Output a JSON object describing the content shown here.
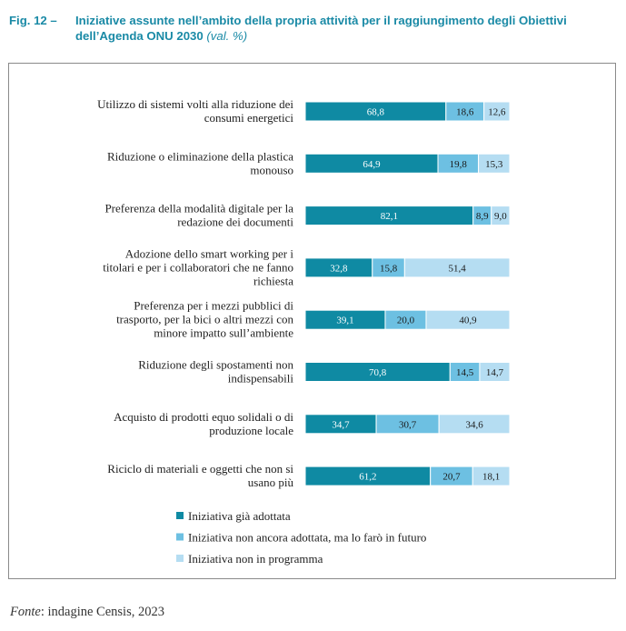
{
  "figure": {
    "number": "Fig. 12 –",
    "title_line1": "Iniziative assunte nell’ambito della propria attività per il raggiungimento degli Obiettivi",
    "title_line2": "dell’Agenda ONU 2030",
    "unit": "(val. %)"
  },
  "source": {
    "label": "Fonte",
    "text": ": indagine Censis, 2023"
  },
  "colors": {
    "adopted": "#0f8aa3",
    "future": "#6dc0e2",
    "not_planned": "#b5ddf2",
    "separator": "#ffffff"
  },
  "chart_data": {
    "type": "bar",
    "orientation": "horizontal",
    "stacked": true,
    "xlim": [
      0,
      100
    ],
    "grid": false,
    "legend_position": "bottom",
    "categories": [
      [
        "Utilizzo di sistemi volti alla riduzione dei",
        "consumi energetici"
      ],
      [
        "Riduzione o eliminazione della plastica",
        "monouso"
      ],
      [
        "Preferenza della modalità digitale per la",
        "redazione dei documenti"
      ],
      [
        "Adozione dello smart working per i",
        "titolari e per i collaboratori che ne fanno",
        "richiesta"
      ],
      [
        "Preferenza per i mezzi pubblici di",
        "trasporto, per la bici o altri mezzi con",
        "minore impatto sull’ambiente"
      ],
      [
        "Riduzione degli spostamenti non",
        "indispensabili"
      ],
      [
        "Acquisto di prodotti equo solidali o di",
        "produzione locale"
      ],
      [
        "Riciclo di materiali e oggetti che non si",
        "usano più"
      ]
    ],
    "series": [
      {
        "name": "Iniziativa già adottata",
        "values": [
          68.8,
          64.9,
          82.1,
          32.8,
          39.1,
          70.8,
          34.7,
          61.2
        ],
        "labels": [
          "68,8",
          "64,9",
          "82,1",
          "32,8",
          "39,1",
          "70,8",
          "34,7",
          "61,2"
        ]
      },
      {
        "name": "Iniziativa non ancora adottata, ma lo farò in futuro",
        "values": [
          18.6,
          19.8,
          8.9,
          15.8,
          20.0,
          14.5,
          30.7,
          20.7
        ],
        "labels": [
          "18,6",
          "19,8",
          "8,9",
          "15,8",
          "20,0",
          "14,5",
          "30,7",
          "20,7"
        ]
      },
      {
        "name": "Iniziativa non in programma",
        "values": [
          12.6,
          15.3,
          9.0,
          51.4,
          40.9,
          14.7,
          34.6,
          18.1
        ],
        "labels": [
          "12,6",
          "15,3",
          "9,0",
          "51,4",
          "40,9",
          "14,7",
          "34,6",
          "18,1"
        ]
      }
    ]
  }
}
